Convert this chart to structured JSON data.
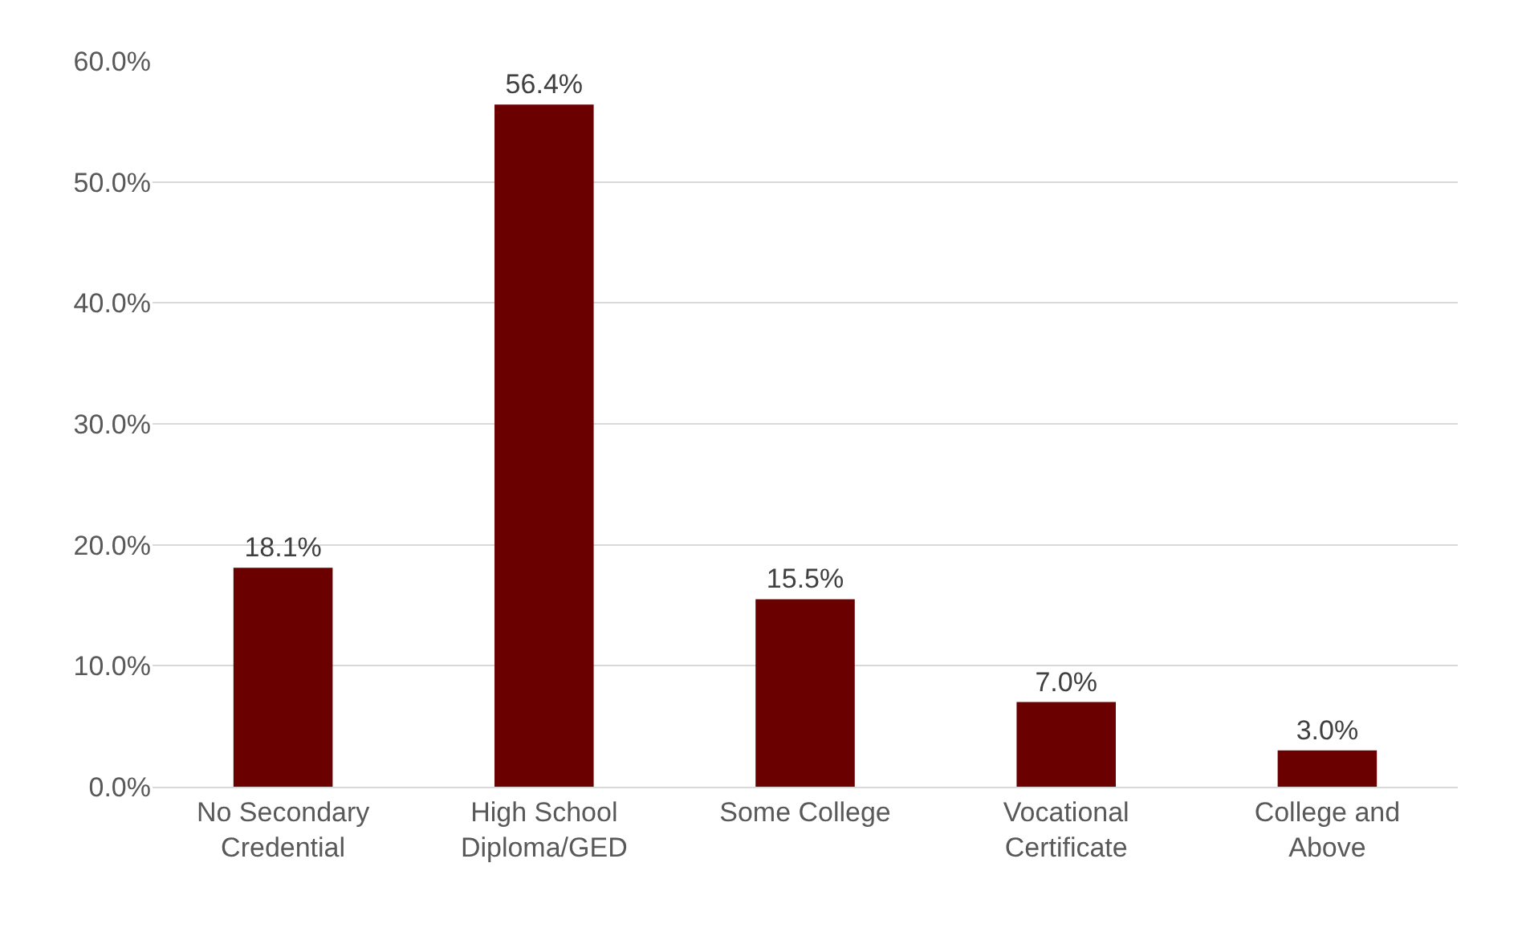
{
  "chart_data": {
    "type": "bar",
    "categories": [
      "No Secondary Credential",
      "High School Diploma/GED",
      "Some College",
      "Vocational Certificate",
      "College and Above"
    ],
    "values": [
      18.1,
      56.4,
      15.5,
      7.0,
      3.0
    ],
    "value_labels": [
      "18.1%",
      "56.4%",
      "15.5%",
      "7.0%",
      "3.0%"
    ],
    "color": "#6b0000",
    "ylim": [
      0,
      60
    ],
    "yticks": [
      {
        "value": 0,
        "label": "0.0%"
      },
      {
        "value": 10,
        "label": "10.0%"
      },
      {
        "value": 20,
        "label": "20.0%"
      },
      {
        "value": 30,
        "label": "30.0%"
      },
      {
        "value": 40,
        "label": "40.0%"
      },
      {
        "value": 50,
        "label": "50.0%"
      },
      {
        "value": 60,
        "label": "60.0%"
      }
    ],
    "grid": "y"
  }
}
